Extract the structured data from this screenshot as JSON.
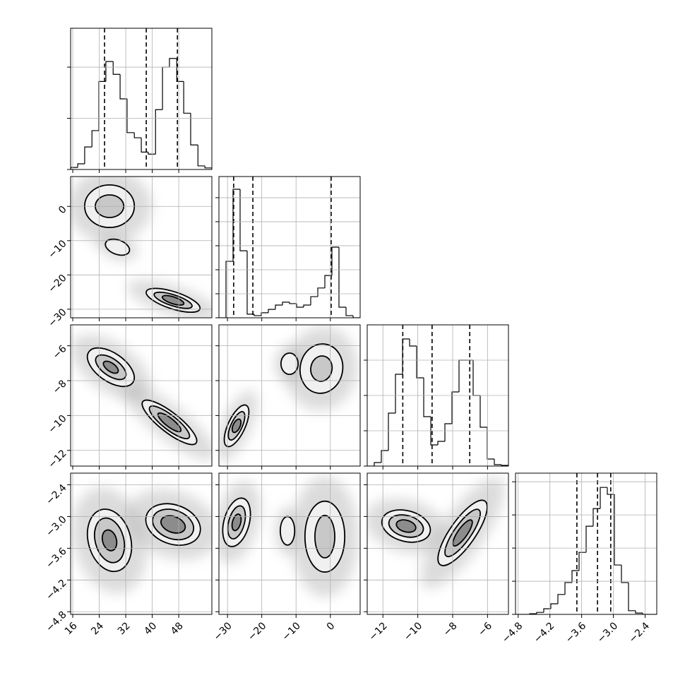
{
  "chart_data": {
    "type": "corner",
    "grid": true,
    "dims": [
      {
        "lim": [
          15.36,
          58
        ],
        "ticks": [
          16,
          24,
          32,
          40,
          48
        ]
      },
      {
        "lim": [
          -32.5,
          8.7
        ],
        "ticks": [
          {
            "value": -30,
            "label": "−30"
          },
          {
            "value": -20,
            "label": "−20"
          },
          {
            "value": -10,
            "label": "−10"
          },
          0
        ]
      },
      {
        "lim": [
          -12.9,
          -4.8
        ],
        "ticks": [
          {
            "value": -12,
            "label": "−12"
          },
          {
            "value": -10,
            "label": "−10"
          },
          {
            "value": -8,
            "label": "−8"
          },
          {
            "value": -6,
            "label": "−6"
          }
        ]
      },
      {
        "lim": [
          -4.85,
          -2.18
        ],
        "ticks": [
          {
            "value": -4.8,
            "label": "−4.8"
          },
          {
            "value": -4.2,
            "label": "−4.2"
          },
          {
            "value": -3.6,
            "label": "−3.6"
          },
          {
            "value": -3.0,
            "label": "−3.0"
          },
          {
            "value": -2.4,
            "label": "−2.4"
          }
        ]
      }
    ],
    "hist": [
      {
        "bins": [
          15.4,
          17.5,
          19.6,
          21.8,
          23.9,
          26.0,
          28.2,
          30.3,
          32.4,
          34.6,
          36.7,
          38.8,
          41.0,
          43.1,
          45.2,
          47.4,
          49.5,
          51.6,
          53.8,
          55.9,
          58.0
        ],
        "counts": [
          0.04,
          0.11,
          0.44,
          0.76,
          1.72,
          2.11,
          1.86,
          1.38,
          0.72,
          0.62,
          0.34,
          0.3,
          1.17,
          2.0,
          2.17,
          1.72,
          1.1,
          0.48,
          0.07,
          0.03
        ],
        "ylim": [
          0,
          2.76
        ],
        "yticks": [
          0,
          1,
          2
        ],
        "quantiles": [
          25.6,
          38.2,
          47.6
        ]
      },
      {
        "bins": [
          -32.5,
          -30.44,
          -28.38,
          -26.32,
          -24.26,
          -22.2,
          -20.14,
          -18.08,
          -16.02,
          -13.96,
          -11.9,
          -9.84,
          -7.78,
          -5.72,
          -3.66,
          -1.6,
          0.46,
          2.52,
          4.58,
          6.64,
          8.7
        ],
        "counts": [
          0,
          2.35,
          5.35,
          2.79,
          0.15,
          0.09,
          0.21,
          0.35,
          0.53,
          0.65,
          0.59,
          0.44,
          0.53,
          0.88,
          1.24,
          1.76,
          2.94,
          0.44,
          0.09,
          0
        ],
        "ylim": [
          0,
          5.88
        ],
        "yticks": [
          0,
          1,
          2,
          3,
          4,
          5
        ],
        "quantiles": [
          -28.2,
          -22.6,
          0.25
        ]
      },
      {
        "bins": [
          -12.9,
          -12.495,
          -12.09,
          -11.685,
          -11.28,
          -10.875,
          -10.47,
          -10.065,
          -9.66,
          -9.255,
          -8.85,
          -8.445,
          -8.04,
          -7.635,
          -7.23,
          -6.825,
          -6.42,
          -6.015,
          -5.61,
          -5.205,
          -4.8
        ],
        "counts": [
          0,
          0.1,
          0.44,
          1.5,
          2.6,
          3.6,
          3.4,
          2.5,
          1.4,
          0.6,
          0.7,
          1.2,
          2.1,
          3.0,
          3.0,
          2.0,
          1.1,
          0.2,
          0.04,
          0.02
        ],
        "ylim": [
          0,
          4
        ],
        "yticks": [
          0,
          1,
          2,
          3
        ],
        "quantiles": [
          -10.86,
          -9.18,
          -7.02
        ]
      },
      {
        "bins": [
          -4.85,
          -4.7165,
          -4.583,
          -4.4495,
          -4.316,
          -4.1825,
          -4.049,
          -3.9155,
          -3.782,
          -3.6485,
          -3.515,
          -3.3815,
          -3.248,
          -3.1145,
          -2.981,
          -2.8475,
          -2.714,
          -2.5805,
          -2.447,
          -2.3135,
          -2.18
        ],
        "counts": [
          0,
          0,
          0.02,
          0.06,
          0.17,
          0.32,
          0.6,
          0.96,
          1.32,
          1.87,
          2.66,
          3.19,
          3.83,
          3.62,
          1.49,
          0.96,
          0.11,
          0.04,
          0,
          0
        ],
        "ylim": [
          0,
          4.26
        ],
        "yticks": [
          0,
          1,
          2,
          3,
          4
        ],
        "quantiles": [
          -3.69,
          -3.3,
          -3.05
        ]
      }
    ],
    "pairs": [
      [
        [
          [
            {
              "x": 27.1,
              "y": 0.05,
              "rx": 7.5,
              "ry": 6.2,
              "angle": 0
            },
            {
              "x": 27.1,
              "y": 0.05,
              "rx": 4.3,
              "ry": 3.3,
              "angle": 0
            }
          ],
          [
            {
              "x": 29.5,
              "y": -11.9,
              "rx": 3.8,
              "ry": 2.1,
              "angle": 20
            }
          ],
          [
            {
              "x": 46.3,
              "y": -27.4,
              "rx": 8.5,
              "ry": 2.5,
              "angle": 18
            },
            {
              "x": 46.3,
              "y": -27.4,
              "rx": 6.0,
              "ry": 1.6,
              "angle": 18
            },
            {
              "x": 46.3,
              "y": -27.4,
              "rx": 3.4,
              "ry": 1.0,
              "angle": 18
            }
          ]
        ]
      ],
      [
        [
          [
            {
              "x": 27.5,
              "y": -7.23,
              "rx": 8.1,
              "ry": 0.81,
              "angle": 35
            },
            {
              "x": 27.5,
              "y": -7.23,
              "rx": 5.3,
              "ry": 0.49,
              "angle": 35
            },
            {
              "x": 27.5,
              "y": -7.23,
              "rx": 2.6,
              "ry": 0.24,
              "angle": 35
            }
          ],
          [
            {
              "x": 45.2,
              "y": -10.39,
              "rx": 10.2,
              "ry": 0.57,
              "angle": 38
            },
            {
              "x": 45.2,
              "y": -10.39,
              "rx": 7.5,
              "ry": 0.41,
              "angle": 38
            },
            {
              "x": 45.2,
              "y": -10.39,
              "rx": 4.3,
              "ry": 0.24,
              "angle": 38
            }
          ]
        ],
        [
          [
            {
              "x": -27.35,
              "y": -10.59,
              "rx": 6.6,
              "ry": 0.49,
              "angle": -65
            },
            {
              "x": -27.35,
              "y": -10.59,
              "rx": 4.5,
              "ry": 0.32,
              "angle": -65
            },
            {
              "x": -27.35,
              "y": -10.59,
              "rx": 2.1,
              "ry": 0.2,
              "angle": -65
            }
          ],
          [
            {
              "x": -11.9,
              "y": -7.03,
              "rx": 2.5,
              "ry": 0.61,
              "angle": 0
            }
          ],
          [
            {
              "x": -2.6,
              "y": -7.31,
              "rx": 6.2,
              "ry": 1.42,
              "angle": 10
            },
            {
              "x": -2.6,
              "y": -7.31,
              "rx": 3.1,
              "ry": 0.73,
              "angle": 10
            }
          ]
        ]
      ],
      [
        [
          [
            {
              "x": 27.1,
              "y": -3.45,
              "rx": 6.4,
              "ry": 0.6,
              "angle": -15
            },
            {
              "x": 27.1,
              "y": -3.45,
              "rx": 4.3,
              "ry": 0.43,
              "angle": -15
            },
            {
              "x": 27.1,
              "y": -3.45,
              "rx": 2.1,
              "ry": 0.2,
              "angle": -15
            }
          ],
          [
            {
              "x": 46.3,
              "y": -3.15,
              "rx": 8.5,
              "ry": 0.37,
              "angle": 20
            },
            {
              "x": 46.3,
              "y": -3.15,
              "rx": 6.4,
              "ry": 0.27,
              "angle": 20
            },
            {
              "x": 46.3,
              "y": -3.15,
              "rx": 3.8,
              "ry": 0.15,
              "angle": 20
            }
          ]
        ],
        [
          [
            {
              "x": -27.35,
              "y": -3.11,
              "rx": 3.7,
              "ry": 0.47,
              "angle": 15
            },
            {
              "x": -27.35,
              "y": -3.11,
              "rx": 2.3,
              "ry": 0.32,
              "angle": 15
            },
            {
              "x": -27.35,
              "y": -3.11,
              "rx": 1.2,
              "ry": 0.16,
              "angle": 15
            }
          ],
          [
            {
              "x": -12.5,
              "y": -3.27,
              "rx": 2.1,
              "ry": 0.27,
              "angle": 0
            }
          ],
          [
            {
              "x": -1.6,
              "y": -3.38,
              "rx": 5.8,
              "ry": 0.67,
              "angle": 0
            },
            {
              "x": -1.6,
              "y": -3.38,
              "rx": 2.9,
              "ry": 0.4,
              "angle": 0
            }
          ]
        ],
        [
          [
            {
              "x": -10.67,
              "y": -3.18,
              "rx": 1.42,
              "ry": 0.29,
              "angle": 15
            },
            {
              "x": -10.67,
              "y": -3.18,
              "rx": 1.01,
              "ry": 0.2,
              "angle": 15
            },
            {
              "x": -10.67,
              "y": -3.18,
              "rx": 0.57,
              "ry": 0.11,
              "angle": 15
            }
          ],
          [
            {
              "x": -7.43,
              "y": -3.31,
              "rx": 2.23,
              "ry": 0.24,
              "angle": -55
            },
            {
              "x": -7.43,
              "y": -3.31,
              "rx": 1.62,
              "ry": 0.16,
              "angle": -55
            },
            {
              "x": -7.43,
              "y": -3.31,
              "rx": 0.89,
              "ry": 0.09,
              "angle": -55
            }
          ]
        ]
      ]
    ]
  }
}
